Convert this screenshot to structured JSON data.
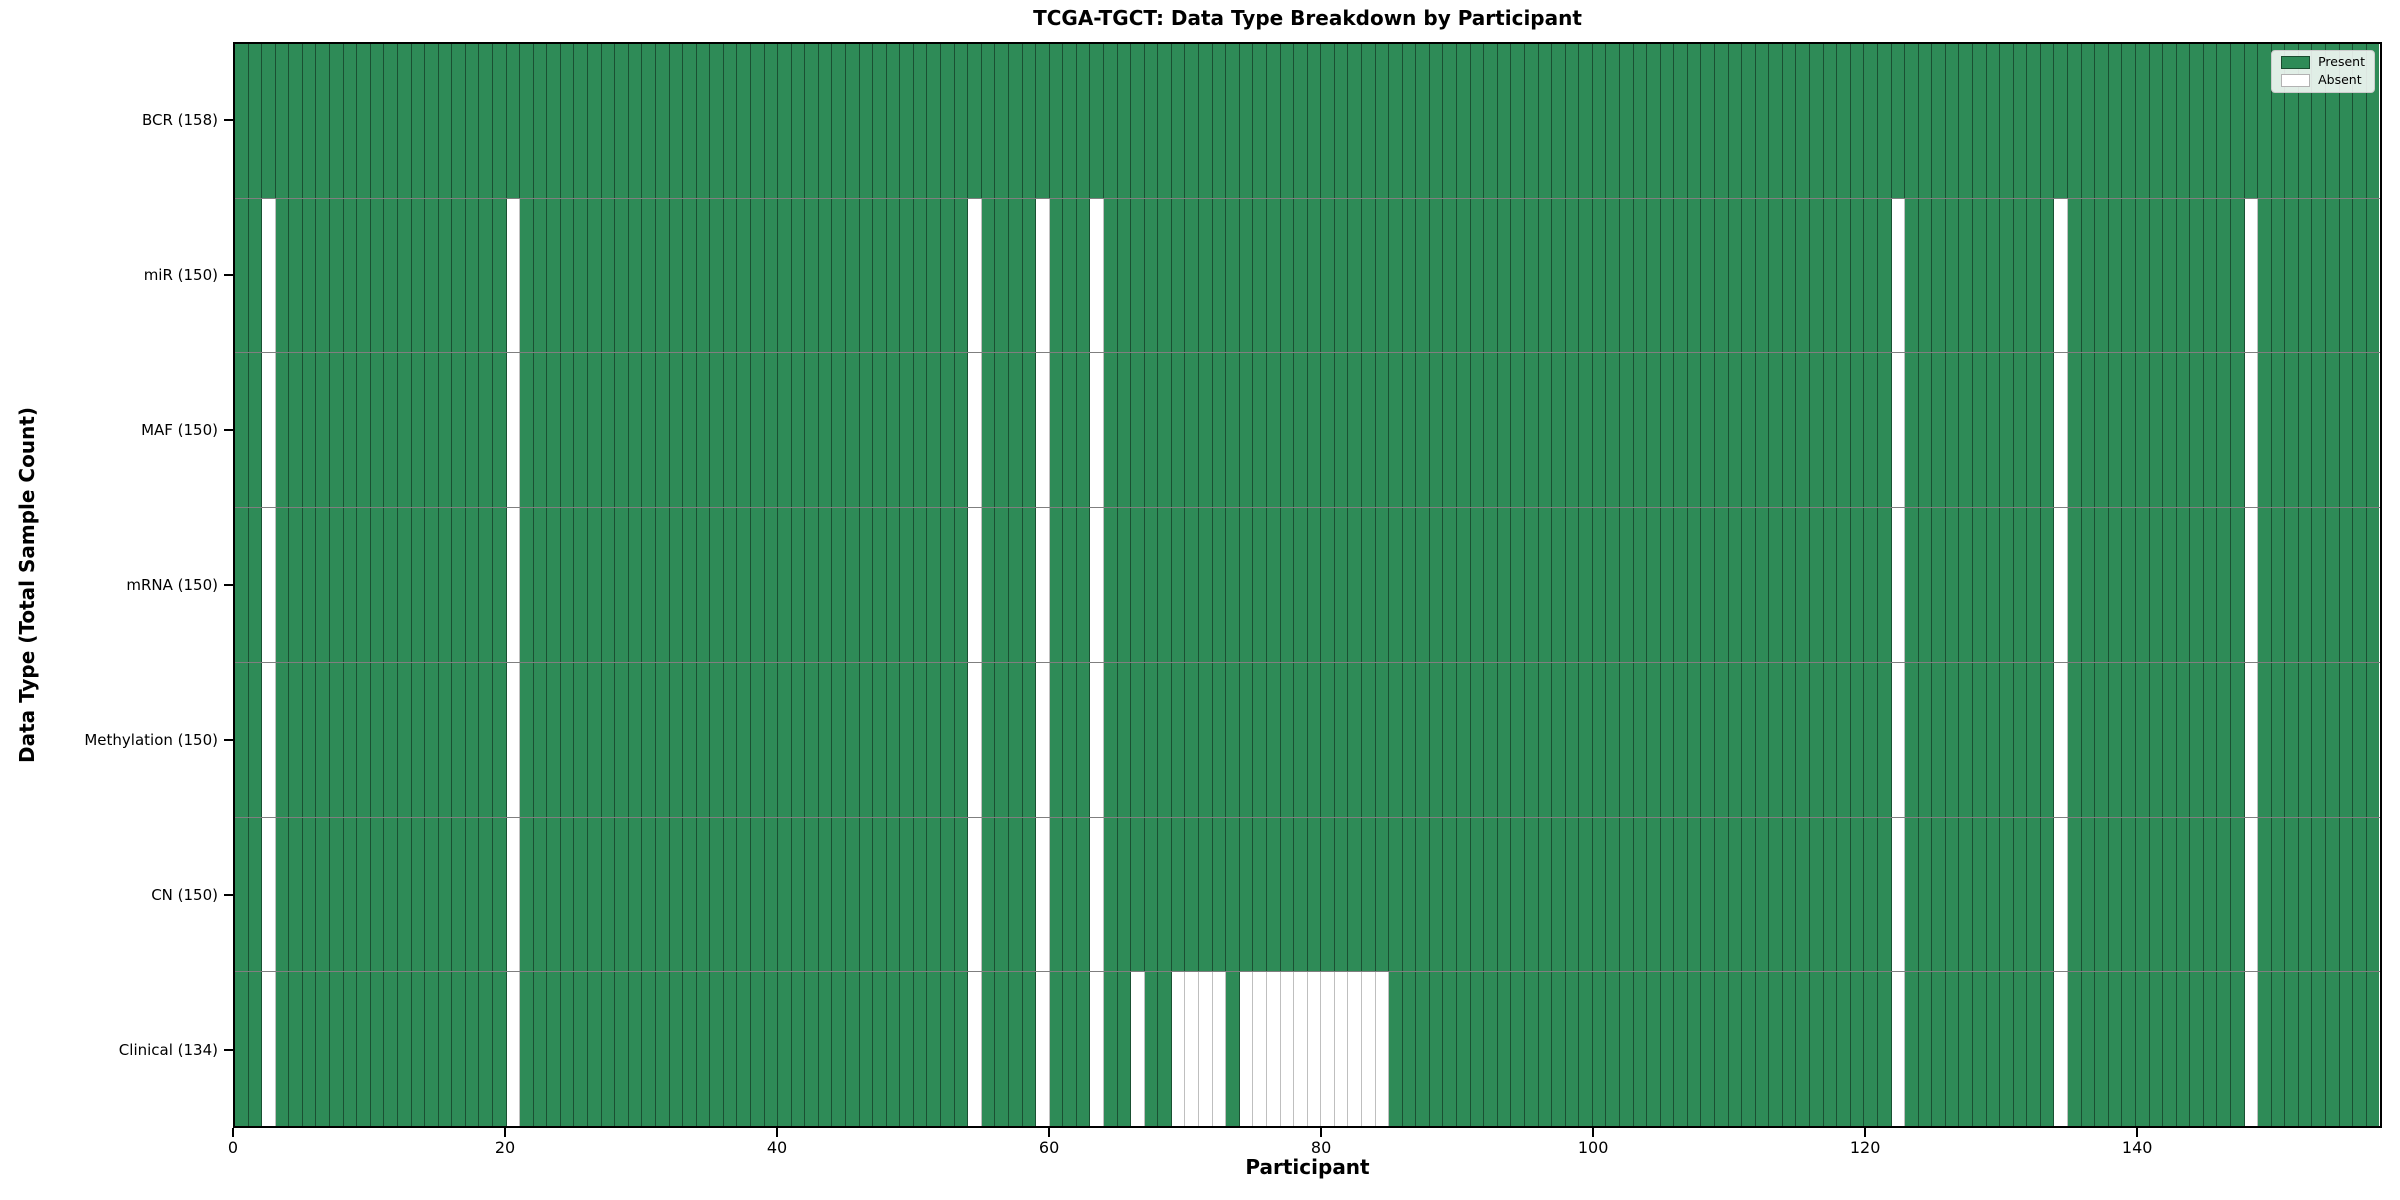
{
  "figure": {
    "title": "TCGA-TGCT: Data Type Breakdown by Participant",
    "xlabel": "Participant",
    "ylabel": "Data Type (Total Sample Count)"
  },
  "legend": {
    "present_label": "Present",
    "absent_label": "Absent"
  },
  "colors": {
    "present": "#2e8b57",
    "absent": "#ffffff",
    "edge_on_present": "rgba(0,0,0,0.42)",
    "edge_on_absent": "rgba(0,0,0,0.25)",
    "row_divider": "rgba(0,0,0,0.5)",
    "spine": "#000000",
    "figure_background": "#ffffff",
    "legend_background": "rgba(255,255,255,0.85)",
    "legend_border": "#cccccc"
  },
  "chart_data": {
    "type": "heatmap",
    "title": "TCGA-TGCT: Data Type Breakdown by Participant",
    "xlabel": "Participant",
    "ylabel": "Data Type (Total Sample Count)",
    "n_participants": 158,
    "x_axis": {
      "range": [
        0,
        158
      ],
      "tick_values": [
        0,
        20,
        40,
        60,
        80,
        100,
        120,
        140
      ]
    },
    "legend_entries": [
      {
        "label": "Present",
        "color": "#2e8b57"
      },
      {
        "label": "Absent",
        "color": "#ffffff"
      }
    ],
    "legend_position": "upper right",
    "grid": "cell-edges",
    "rows": [
      {
        "label": "BCR (158)",
        "data_type": "BCR",
        "present_count": 158,
        "absent_participants": []
      },
      {
        "label": "miR (150)",
        "data_type": "miR",
        "present_count": 150,
        "absent_participants": [
          2,
          20,
          54,
          59,
          63,
          122,
          134,
          148
        ]
      },
      {
        "label": "MAF (150)",
        "data_type": "MAF",
        "present_count": 150,
        "absent_participants": [
          2,
          20,
          54,
          59,
          63,
          122,
          134,
          148
        ]
      },
      {
        "label": "mRNA (150)",
        "data_type": "mRNA",
        "present_count": 150,
        "absent_participants": [
          2,
          20,
          54,
          59,
          63,
          122,
          134,
          148
        ]
      },
      {
        "label": "Methylation (150)",
        "data_type": "Methylation",
        "present_count": 150,
        "absent_participants": [
          2,
          20,
          54,
          59,
          63,
          122,
          134,
          148
        ]
      },
      {
        "label": "CN (150)",
        "data_type": "CN",
        "present_count": 150,
        "absent_participants": [
          2,
          20,
          54,
          59,
          63,
          122,
          134,
          148
        ]
      },
      {
        "label": "Clinical (134)",
        "data_type": "Clinical",
        "present_count": 134,
        "absent_participants": [
          2,
          20,
          54,
          59,
          63,
          66,
          69,
          70,
          71,
          72,
          74,
          75,
          76,
          77,
          78,
          79,
          80,
          81,
          82,
          83,
          84,
          122,
          134,
          148
        ]
      }
    ]
  }
}
